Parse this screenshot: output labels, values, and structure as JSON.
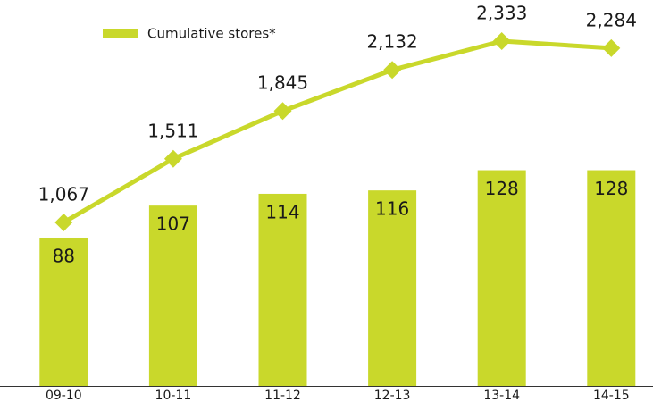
{
  "chart_data": {
    "type": "bar-line",
    "categories": [
      "09-10",
      "10-11",
      "11-12",
      "12-13",
      "13-14",
      "14-15"
    ],
    "series": [
      {
        "type": "bar",
        "color": "#c9d82b",
        "values": [
          88,
          107,
          114,
          116,
          128,
          128
        ]
      },
      {
        "type": "line",
        "name": "Cumulative stores*",
        "color": "#c9d82b",
        "axis": "y2",
        "values": [
          1067,
          1511,
          1845,
          2132,
          2333,
          2284
        ],
        "value_labels": [
          "1,067",
          "1,511",
          "1,845",
          "2,132",
          "2,333",
          "2,284"
        ]
      }
    ],
    "ylim": [
      0,
      229
    ],
    "y2lim": [
      -75,
      2620
    ],
    "legend": "top-left"
  }
}
